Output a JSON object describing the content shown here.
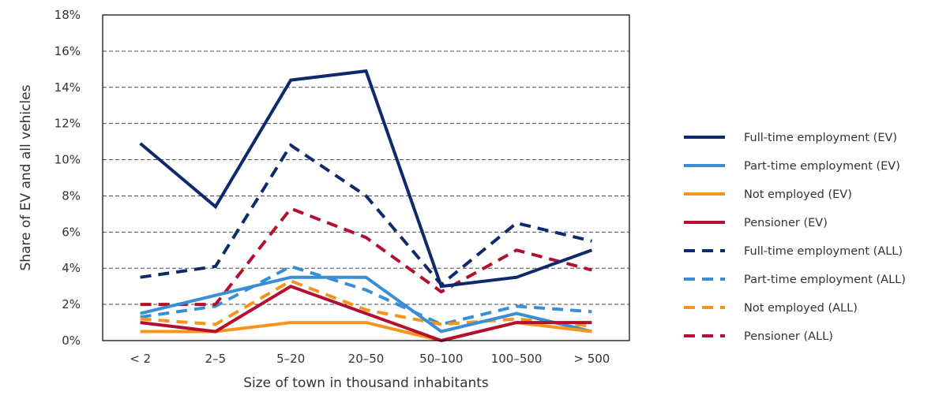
{
  "chart_data": {
    "type": "line",
    "xlabel": "Size of town in thousand inhabitants",
    "ylabel": "Share of EV and all vehicles",
    "categories": [
      "< 2",
      "2–5",
      "5–20",
      "20–50",
      "50–100",
      "100–500",
      "> 500"
    ],
    "ylim": [
      0,
      18
    ],
    "yticks": [
      "0%",
      "2%",
      "4%",
      "6%",
      "8%",
      "10%",
      "12%",
      "14%",
      "16%",
      "18%"
    ],
    "grid": "horizontal dashed",
    "legend_position": "right",
    "series": [
      {
        "name": "Full-time employment (EV)",
        "values": [
          10.9,
          7.4,
          14.4,
          14.9,
          3.0,
          3.5,
          5.0
        ],
        "color": "#0f2a6b",
        "dashed": false
      },
      {
        "name": "Part-time employment (EV)",
        "values": [
          1.5,
          2.5,
          3.5,
          3.5,
          0.5,
          1.5,
          0.5
        ],
        "color": "#3a8fd4",
        "dashed": false
      },
      {
        "name": "Not employed (EV)",
        "values": [
          0.5,
          0.5,
          1.0,
          1.0,
          0.0,
          1.0,
          0.5
        ],
        "color": "#f7941d",
        "dashed": false
      },
      {
        "name": "Pensioner (EV)",
        "values": [
          1.0,
          0.5,
          3.0,
          1.5,
          0.0,
          1.0,
          1.0
        ],
        "color": "#b3102f",
        "dashed": false
      },
      {
        "name": "Full-time employment (ALL)",
        "values": [
          3.5,
          4.1,
          10.8,
          8.0,
          3.1,
          6.5,
          5.5
        ],
        "color": "#0f2a6b",
        "dashed": true
      },
      {
        "name": "Part-time employment (ALL)",
        "values": [
          1.3,
          1.9,
          4.1,
          2.8,
          0.9,
          1.9,
          1.6
        ],
        "color": "#3a8fd4",
        "dashed": true
      },
      {
        "name": "Not employed (ALL)",
        "values": [
          1.2,
          0.9,
          3.3,
          1.7,
          0.9,
          1.2,
          0.8
        ],
        "color": "#f7941d",
        "dashed": true
      },
      {
        "name": "Pensioner (ALL)",
        "values": [
          2.0,
          2.0,
          7.3,
          5.7,
          2.7,
          5.0,
          3.9
        ],
        "color": "#b3102f",
        "dashed": true
      }
    ]
  }
}
